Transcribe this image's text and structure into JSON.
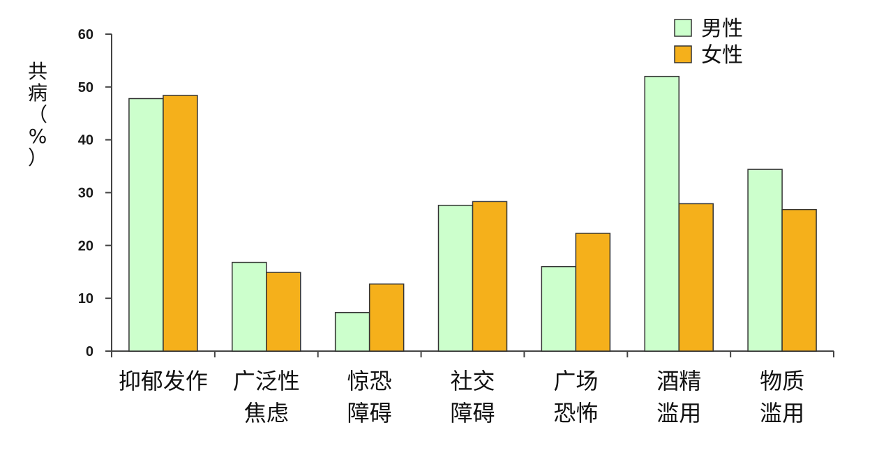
{
  "chart_data": {
    "type": "bar",
    "ylabel": "共病（%）",
    "ylim": [
      0,
      60
    ],
    "yticks": [
      0,
      10,
      20,
      30,
      40,
      50,
      60
    ],
    "categories": [
      "抑郁发作",
      "广泛性\n焦虑",
      "惊恐\n障碍",
      "社交\n障碍",
      "广场\n恐怖",
      "酒精\n滥用",
      "物质\n滥用"
    ],
    "series": [
      {
        "name": "男性",
        "color": "#ccffcc",
        "values": [
          47.8,
          16.8,
          7.3,
          27.6,
          16.0,
          52.0,
          34.4
        ]
      },
      {
        "name": "女性",
        "color": "#f5b01b",
        "values": [
          48.4,
          14.9,
          12.7,
          28.3,
          22.3,
          27.9,
          26.8
        ]
      }
    ],
    "legend": {
      "position": "top-right"
    },
    "grid": false
  }
}
